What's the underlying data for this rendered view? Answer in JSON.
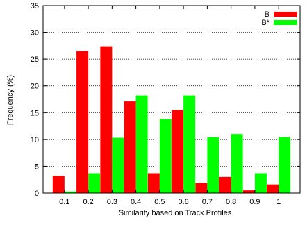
{
  "chart_data": {
    "type": "bar",
    "xlabel": "Similarity based on Track Profiles",
    "ylabel": "Frequency (%)",
    "ylim": [
      0,
      35
    ],
    "yticks": [
      0,
      5,
      10,
      15,
      20,
      25,
      30,
      35
    ],
    "grid": "horizontal dotted",
    "legend_position": "top-right",
    "categories": [
      "0.1",
      "0.2",
      "0.3",
      "0.4",
      "0.5",
      "0.6",
      "0.7",
      "0.8",
      "0.9",
      "1"
    ],
    "series": [
      {
        "name": "B",
        "color": "#ff0000",
        "values": [
          3.2,
          26.5,
          27.4,
          17.1,
          3.7,
          15.5,
          1.9,
          3.0,
          0.5,
          1.6
        ]
      },
      {
        "name": "B*",
        "color": "#00ff00",
        "values": [
          0.3,
          3.7,
          10.3,
          18.2,
          13.8,
          18.2,
          10.4,
          11.0,
          3.7,
          10.4
        ]
      }
    ]
  }
}
